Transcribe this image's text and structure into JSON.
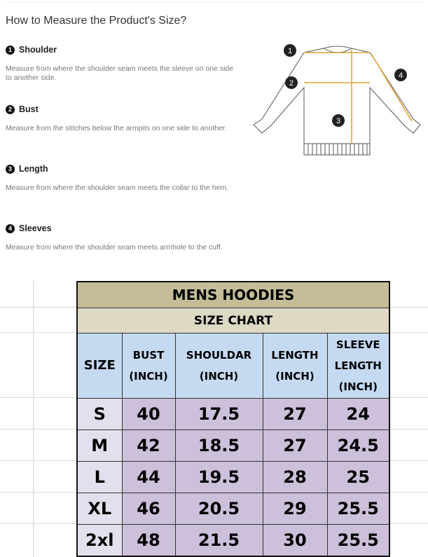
{
  "guide": {
    "title": "How to Measure the Product's Size?",
    "items": [
      {
        "num": "1",
        "label": "Shoulder",
        "desc": "Measure from where the shoulder seam meets the sleeve on one side to another side."
      },
      {
        "num": "2",
        "label": "Bust",
        "desc": "Measure from the stitches below the armpits on one side to another."
      },
      {
        "num": "3",
        "label": "Length",
        "desc": "Measure from where the shoulder seam meets the collar to the hem."
      },
      {
        "num": "4",
        "label": "Sleeves",
        "desc": "Measure from where the shoulder seam meets armhole to the cuff."
      }
    ],
    "diagram_markers": [
      "1",
      "2",
      "3",
      "4"
    ]
  },
  "size_chart": {
    "title": "MENS HOODIES",
    "subtitle": "SIZE CHART",
    "headers": [
      "SIZE",
      "BUST (INCH)",
      "SHOULDAR (INCH)",
      "LENGTH (INCH)",
      "SLEEVE LENGTH (INCH)"
    ],
    "rows": [
      [
        "S",
        "40",
        "17.5",
        "27",
        "24"
      ],
      [
        "M",
        "42",
        "18.5",
        "27",
        "24.5"
      ],
      [
        "L",
        "44",
        "19.5",
        "28",
        "25"
      ],
      [
        "XL",
        "46",
        "20.5",
        "29",
        "25.5"
      ],
      [
        "2xl",
        "48",
        "21.5",
        "30",
        "25.5"
      ]
    ],
    "colors": {
      "title": "#c4bd97",
      "subtitle": "#ddd9c4",
      "header": "#c5d9f1",
      "size_col": "#e4dfec",
      "values": "#ccc0da"
    }
  }
}
